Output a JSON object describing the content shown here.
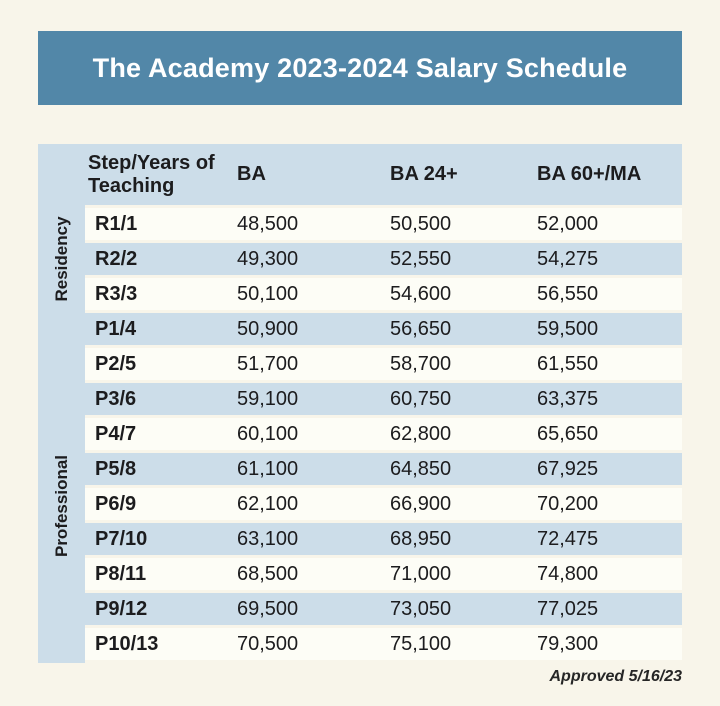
{
  "page": {
    "title": "The Academy 2023-2024 Salary Schedule",
    "footer_note": "Approved 5/16/23"
  },
  "colors": {
    "banner_bg": "#5287a8",
    "banner_text": "#ffffff",
    "stripe_blue": "#ccdde9",
    "row_white": "#fdfdf6",
    "page_bg": "#f8f5ea",
    "text": "#1c1c1e"
  },
  "table": {
    "columns": [
      "Step/Years of Teaching",
      "BA",
      "BA 24+",
      "BA 60+/MA"
    ],
    "groups": [
      {
        "label": "Residency",
        "row_count": 3
      },
      {
        "label": "Professional",
        "row_count": 10
      }
    ],
    "rows": [
      {
        "group": "Residency",
        "step": "R1/1",
        "ba": "48,500",
        "ba24": "50,500",
        "ba60": "52,000"
      },
      {
        "group": "Residency",
        "step": "R2/2",
        "ba": "49,300",
        "ba24": "52,550",
        "ba60": "54,275"
      },
      {
        "group": "Residency",
        "step": "R3/3",
        "ba": "50,100",
        "ba24": "54,600",
        "ba60": "56,550"
      },
      {
        "group": "Professional",
        "step": "P1/4",
        "ba": "50,900",
        "ba24": "56,650",
        "ba60": "59,500"
      },
      {
        "group": "Professional",
        "step": "P2/5",
        "ba": "51,700",
        "ba24": "58,700",
        "ba60": "61,550"
      },
      {
        "group": "Professional",
        "step": "P3/6",
        "ba": "59,100",
        "ba24": "60,750",
        "ba60": "63,375"
      },
      {
        "group": "Professional",
        "step": "P4/7",
        "ba": "60,100",
        "ba24": "62,800",
        "ba60": "65,650"
      },
      {
        "group": "Professional",
        "step": "P5/8",
        "ba": "61,100",
        "ba24": "64,850",
        "ba60": "67,925"
      },
      {
        "group": "Professional",
        "step": "P6/9",
        "ba": "62,100",
        "ba24": "66,900",
        "ba60": "70,200"
      },
      {
        "group": "Professional",
        "step": "P7/10",
        "ba": "63,100",
        "ba24": "68,950",
        "ba60": "72,475"
      },
      {
        "group": "Professional",
        "step": "P8/11",
        "ba": "68,500",
        "ba24": "71,000",
        "ba60": "74,800"
      },
      {
        "group": "Professional",
        "step": "P9/12",
        "ba": "69,500",
        "ba24": "73,050",
        "ba60": "77,025"
      },
      {
        "group": "Professional",
        "step": "P10/13",
        "ba": "70,500",
        "ba24": "75,100",
        "ba60": "79,300"
      }
    ]
  },
  "chart_data": {
    "type": "table",
    "title": "The Academy 2023-2024 Salary Schedule",
    "columns": [
      "Step/Years of Teaching",
      "BA",
      "BA 24+",
      "BA 60+/MA"
    ],
    "row_groups": [
      {
        "group": "Residency",
        "steps": [
          "R1/1",
          "R2/2",
          "R3/3"
        ]
      },
      {
        "group": "Professional",
        "steps": [
          "P1/4",
          "P2/5",
          "P3/6",
          "P4/7",
          "P5/8",
          "P6/9",
          "P7/10",
          "P8/11",
          "P9/12",
          "P10/13"
        ]
      }
    ],
    "rows": [
      [
        "R1/1",
        48500,
        50500,
        52000
      ],
      [
        "R2/2",
        49300,
        52550,
        54275
      ],
      [
        "R3/3",
        50100,
        54600,
        56550
      ],
      [
        "P1/4",
        50900,
        56650,
        59500
      ],
      [
        "P2/5",
        51700,
        58700,
        61550
      ],
      [
        "P3/6",
        59100,
        60750,
        63375
      ],
      [
        "P4/7",
        60100,
        62800,
        65650
      ],
      [
        "P5/8",
        61100,
        64850,
        67925
      ],
      [
        "P6/9",
        62100,
        66900,
        70200
      ],
      [
        "P7/10",
        63100,
        68950,
        72475
      ],
      [
        "P8/11",
        68500,
        71000,
        74800
      ],
      [
        "P9/12",
        69500,
        73050,
        77025
      ],
      [
        "P10/13",
        70500,
        75100,
        79300
      ]
    ],
    "annotations": [
      "Approved 5/16/23"
    ]
  }
}
